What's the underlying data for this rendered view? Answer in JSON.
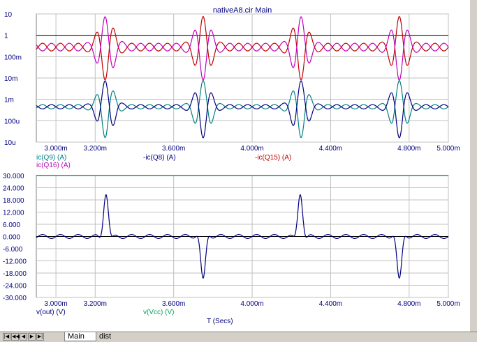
{
  "title": "nativeA8.cir Main",
  "tabs": [
    {
      "label": "Main"
    },
    {
      "label": "dist"
    }
  ],
  "nav_icons": [
    "first-icon",
    "prev-page-icon",
    "prev-icon",
    "next-icon",
    "last-icon"
  ],
  "colors": {
    "ic_q9": "#008080",
    "ic_q8": "#000080",
    "ic_q15": "#c00000",
    "ic_q16": "#c000c0",
    "ref_line": "#000000",
    "v_out": "#000080",
    "v_vcc": "#00a060",
    "axis_text": "#000080",
    "grid": "#c0c0c0"
  },
  "chart_data": [
    {
      "type": "line",
      "name": "upper",
      "y_scale": "log",
      "xlim": [
        0.0029,
        0.005
      ],
      "ylim": [
        1e-05,
        10
      ],
      "x_ticks": [
        0.003,
        0.0032,
        0.0036,
        0.004,
        0.0044,
        0.0048,
        0.005
      ],
      "x_tick_labels": [
        "3.000m",
        "3.200m",
        "3.600m",
        "4.000m",
        "4.400m",
        "4.800m",
        "5.000m"
      ],
      "y_ticks": [
        10,
        1,
        0.1,
        0.01,
        0.001,
        0.0001,
        1e-05
      ],
      "y_tick_labels": [
        "10",
        "1",
        "100m",
        "10m",
        "1m",
        "100u",
        "10u"
      ],
      "grid": true,
      "reference_line": 1,
      "burst_times": [
        0.003255,
        0.00375,
        0.004245,
        0.00475
      ],
      "series": [
        {
          "name": "ic(Q9) (A)",
          "baseline": 0.00045,
          "ripple_decades": 0.1,
          "burst_peak": 0.006,
          "burst_trough": 2e-05
        },
        {
          "name": "-ic(Q8) (A)",
          "baseline": 0.00045,
          "ripple_decades": 0.1,
          "burst_peak": 0.006,
          "burst_trough": 2e-05
        },
        {
          "name": "-ic(Q15) (A)",
          "baseline": 0.28,
          "ripple_decades": 0.18,
          "burst_peak": 5.0,
          "burst_trough": 0.012
        },
        {
          "name": "ic(Q16) (A)",
          "baseline": 0.28,
          "ripple_decades": 0.18,
          "burst_peak": 5.0,
          "burst_trough": 0.012
        }
      ]
    },
    {
      "type": "line",
      "name": "lower",
      "xlim": [
        0.0029,
        0.005
      ],
      "ylim": [
        -30,
        30
      ],
      "x_ticks": [
        0.003,
        0.0032,
        0.0036,
        0.004,
        0.0044,
        0.0048,
        0.005
      ],
      "x_tick_labels": [
        "3.000m",
        "3.200m",
        "3.600m",
        "4.000m",
        "4.400m",
        "4.800m",
        "5.000m"
      ],
      "y_ticks": [
        30,
        24,
        18,
        12,
        6,
        0,
        -6,
        -12,
        -18,
        -24,
        -30
      ],
      "y_tick_labels": [
        "30.000",
        "24.000",
        "18.000",
        "12.000",
        "6.000",
        "0.000",
        "-6.000",
        "-12.000",
        "-18.000",
        "-24.000",
        "-30.000"
      ],
      "grid": true,
      "xlabel": "T (Secs)",
      "burst_times": [
        0.003255,
        0.00375,
        0.004245,
        0.00475
      ],
      "burst_amplitudes": [
        21.5,
        -21.5,
        21.5,
        -21.5
      ],
      "series": [
        {
          "name": "v(out) (V)",
          "ripple_amplitude": 1.0
        },
        {
          "name": "v(Vcc) (V)",
          "constant": 30
        }
      ]
    }
  ]
}
